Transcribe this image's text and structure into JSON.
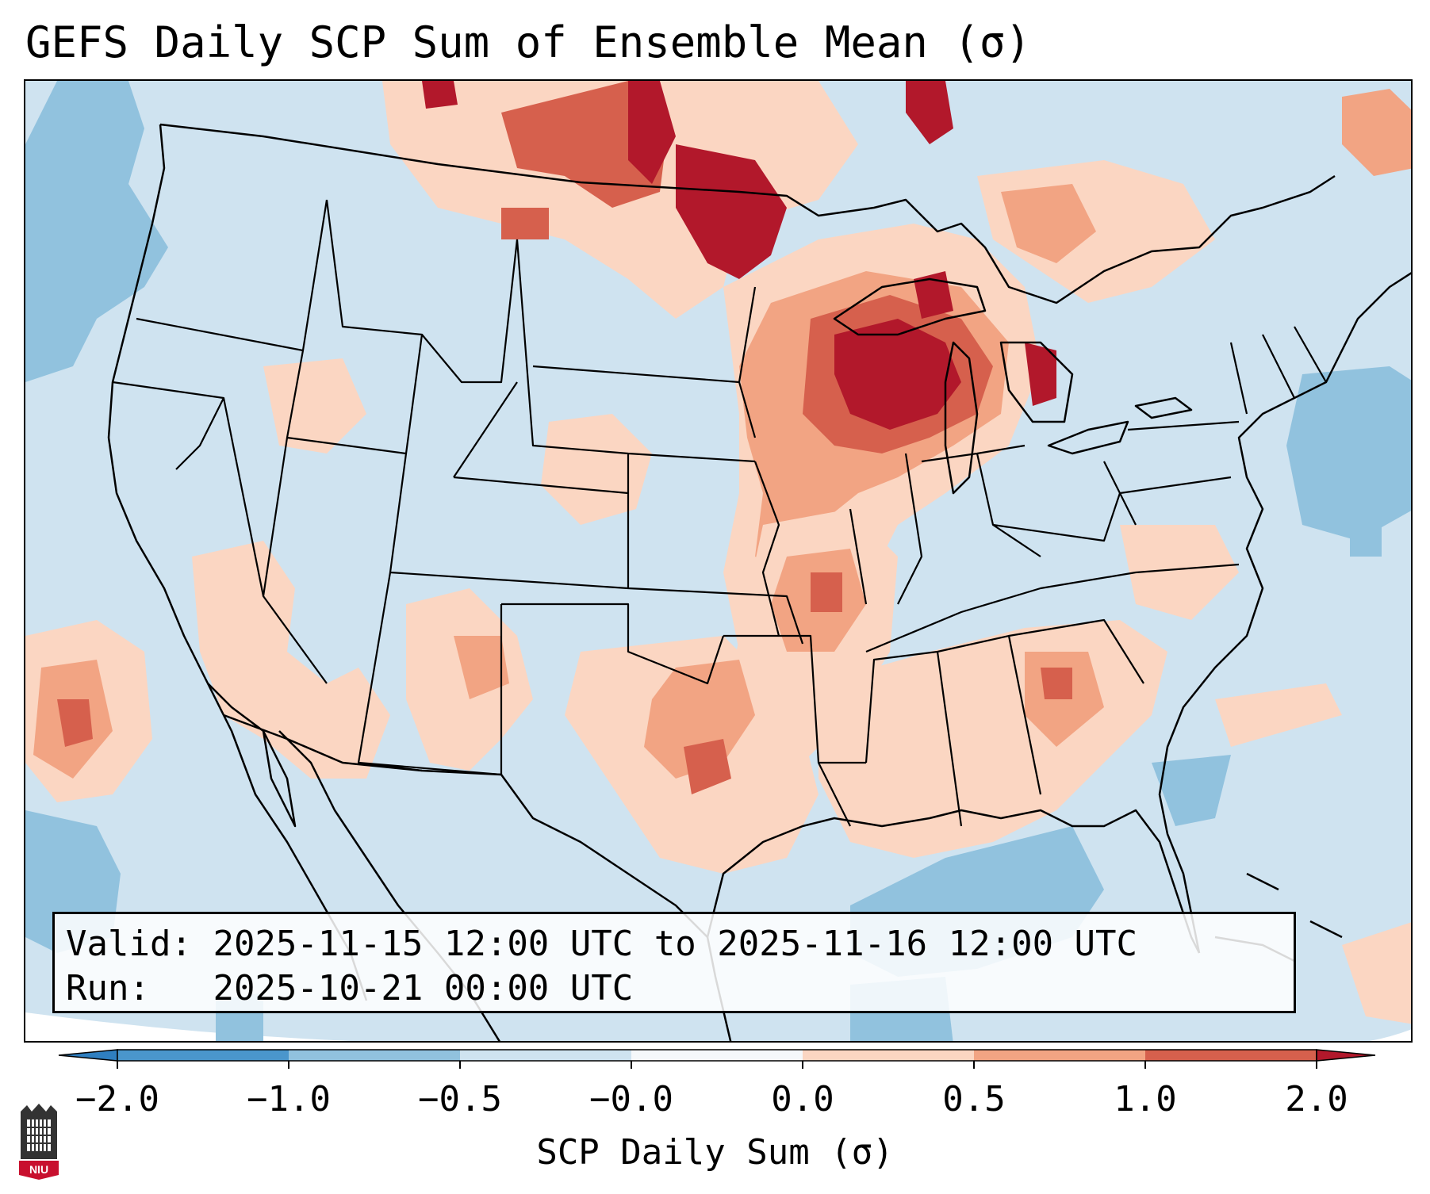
{
  "title": "GEFS Daily SCP Sum of Ensemble Mean (σ)",
  "info_box": {
    "valid_label": "Valid:",
    "valid_value": "2025-11-15 12:00 UTC to 2025-11-16 12:00 UTC",
    "run_label": "Run:",
    "run_value": "2025-10-21 00:00 UTC"
  },
  "colorbar": {
    "label": "SCP Daily Sum (σ)",
    "ticks": [
      "−2.0",
      "−1.0",
      "−0.5",
      "−0.0",
      "0.0",
      "0.5",
      "1.0",
      "2.0"
    ],
    "bins": [
      {
        "from": "<-2.0",
        "color": "#2f7fc0"
      },
      {
        "from": "-2.0",
        "to": "-1.0",
        "color": "#4a96cc"
      },
      {
        "from": "-1.0",
        "to": "-0.5",
        "color": "#91c2de"
      },
      {
        "from": "-0.5",
        "to": "-0.0",
        "color": "#cfe3f0"
      },
      {
        "from": "-0.0",
        "to": "0.0",
        "color": "#f5f8fa"
      },
      {
        "from": "0.0",
        "to": "0.5",
        "color": "#fbd6c2"
      },
      {
        "from": "0.5",
        "to": "1.0",
        "color": "#f2a483"
      },
      {
        "from": "1.0",
        "to": "2.0",
        "color": "#d6604d"
      },
      {
        "from": ">2.0",
        "color": "#b2182b"
      }
    ]
  },
  "regions": [
    {
      "name": "Upper Midwest / Great Lakes",
      "category": ">2.0"
    },
    {
      "name": "Dakotas / Manitoba border",
      "category": ">2.0"
    },
    {
      "name": "Illinois / Missouri / Arkansas",
      "category": "0.5 to 1.0"
    },
    {
      "name": "Texas / Oklahoma",
      "category": "0.5 to 1.0"
    },
    {
      "name": "Southeast US",
      "category": "0.0 to 0.5"
    },
    {
      "name": "Western Atlantic",
      "category": "-1.0 to -0.5"
    },
    {
      "name": "Gulf of Mexico",
      "category": "-1.0 to -0.5"
    },
    {
      "name": "Eastern Pacific",
      "category": "-1.0 to -0.5"
    }
  ],
  "logo": {
    "name": "NIU",
    "text": "NIU"
  }
}
